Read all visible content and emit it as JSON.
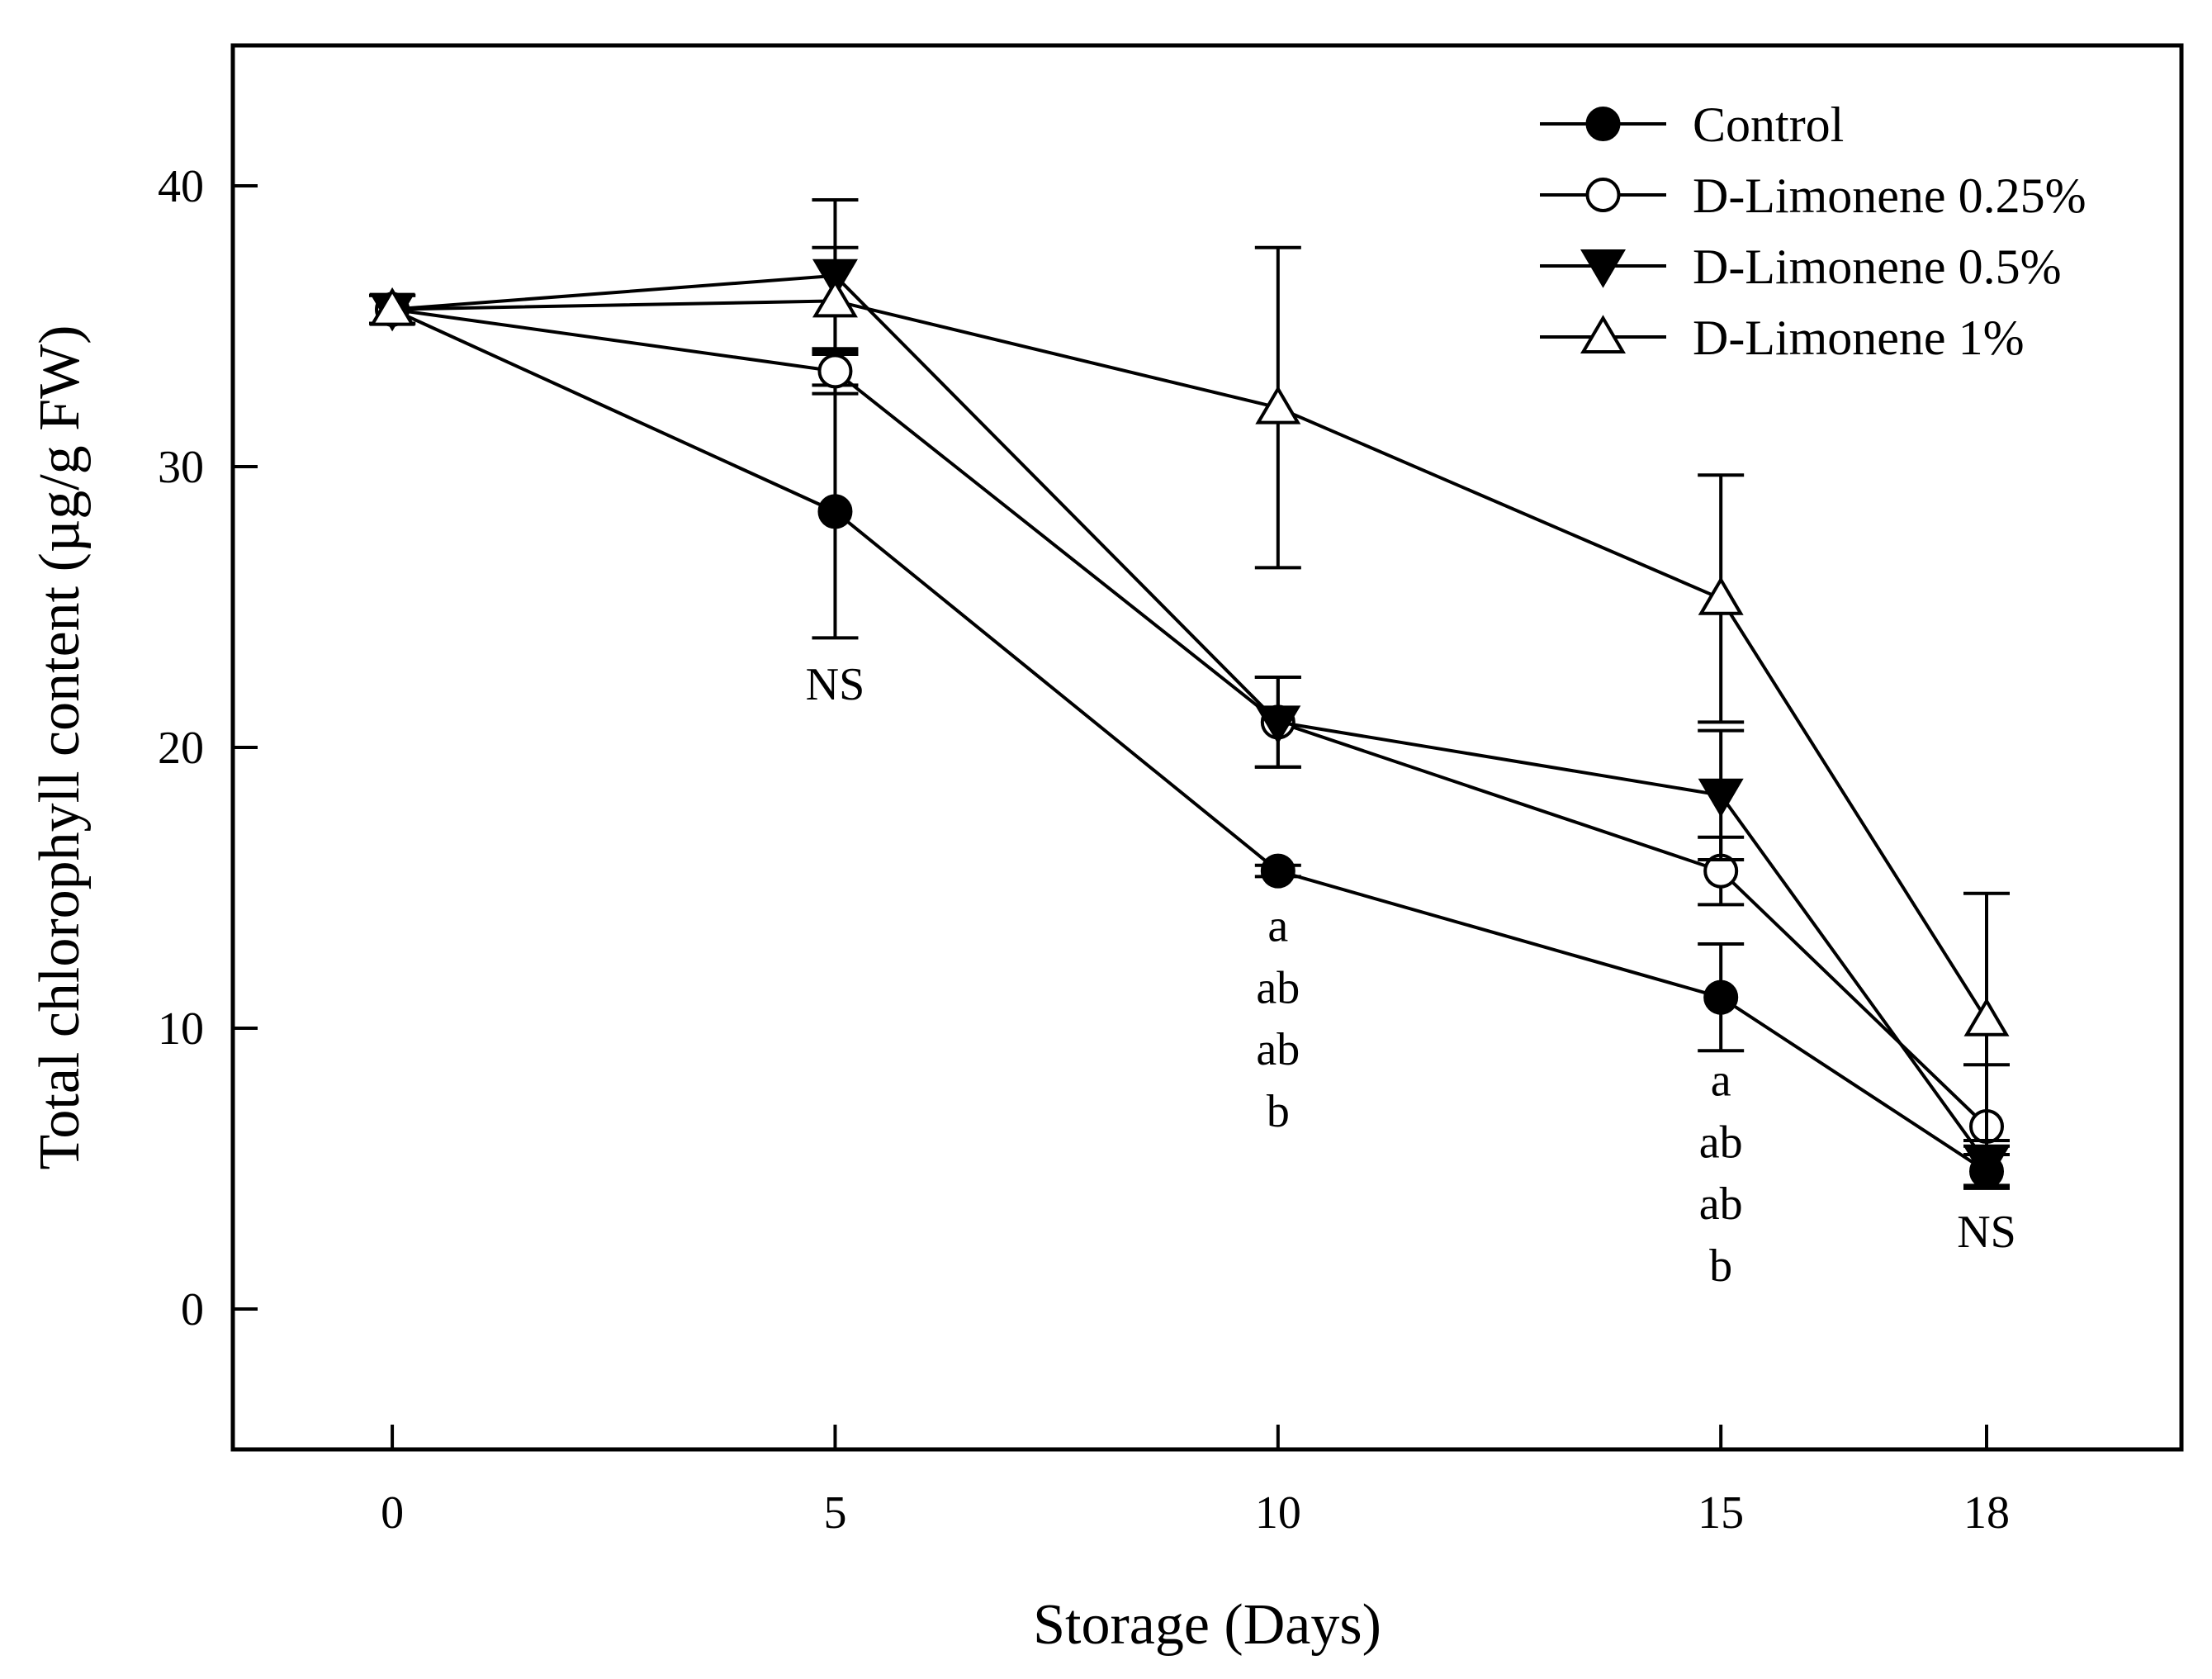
{
  "chart_data": {
    "type": "line",
    "xlabel": "Storage (Days)",
    "ylabel": "Total chlorophyll content (µg/g FW)",
    "x": [
      0,
      5,
      10,
      15,
      18
    ],
    "x_ticks": [
      "0",
      "5",
      "10",
      "15",
      "18"
    ],
    "xlim": [
      -1.8,
      20.2
    ],
    "ylim": [
      -5,
      45
    ],
    "y_ticks": [
      "0",
      "10",
      "20",
      "30",
      "40"
    ],
    "legend_position": "top-right",
    "series": [
      {
        "name": "Control",
        "marker": "circle-filled",
        "values": [
          35.6,
          28.4,
          15.6,
          11.1,
          4.9
        ],
        "errors": [
          0.5,
          4.5,
          0.2,
          1.9,
          0.6
        ]
      },
      {
        "name": "D-Limonene 0.25%",
        "marker": "circle-open",
        "values": [
          35.6,
          33.4,
          20.9,
          15.6,
          6.5
        ],
        "errors": [
          0.5,
          0.8,
          1.6,
          1.2,
          2.2
        ]
      },
      {
        "name": "D-Limonene 0.5%",
        "marker": "triangle-down-filled",
        "values": [
          35.6,
          36.8,
          20.9,
          18.3,
          5.2
        ],
        "errors": [
          0.5,
          2.7,
          1.6,
          2.3,
          0.8
        ]
      },
      {
        "name": "D-Limonene 1%",
        "marker": "triangle-up-open",
        "values": [
          35.6,
          35.9,
          32.1,
          25.3,
          10.3
        ],
        "errors": [
          0.5,
          1.9,
          5.7,
          4.4,
          4.5
        ]
      }
    ],
    "annotations": [
      {
        "x": 5,
        "y": 21.7,
        "text": "NS"
      },
      {
        "x": 10,
        "y": 13.1,
        "text": "a"
      },
      {
        "x": 10,
        "y": 10.9,
        "text": "ab"
      },
      {
        "x": 10,
        "y": 8.7,
        "text": "ab"
      },
      {
        "x": 10,
        "y": 6.5,
        "text": "b"
      },
      {
        "x": 15,
        "y": 7.6,
        "text": "a"
      },
      {
        "x": 15,
        "y": 5.4,
        "text": "ab"
      },
      {
        "x": 15,
        "y": 3.2,
        "text": "ab"
      },
      {
        "x": 15,
        "y": 1.0,
        "text": "b"
      },
      {
        "x": 18,
        "y": 2.2,
        "text": "NS"
      }
    ]
  }
}
